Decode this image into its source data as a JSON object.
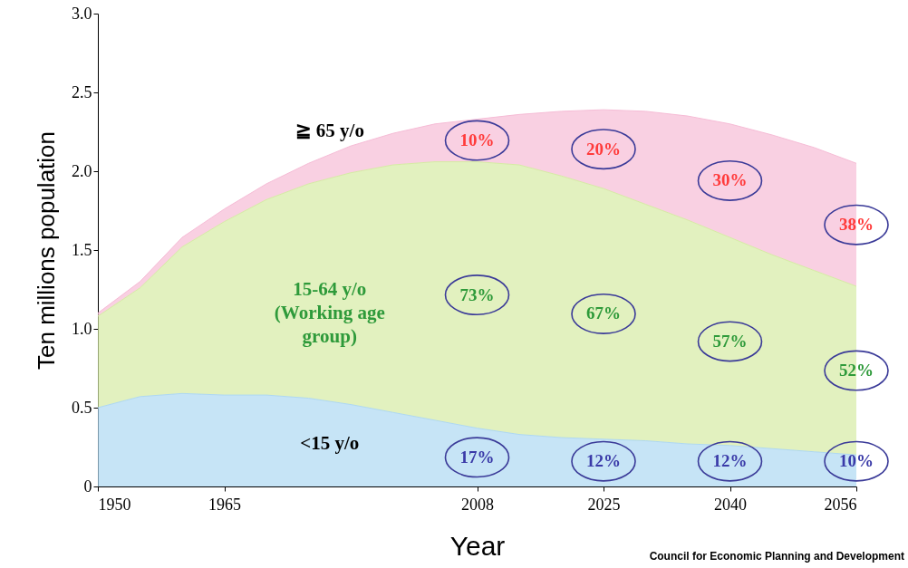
{
  "chart_data": {
    "type": "area",
    "stacked": true,
    "xlabel": "Year",
    "ylabel": "Ten millions population",
    "categories": [
      "1950",
      null,
      null,
      "1965",
      null,
      null,
      null,
      null,
      null,
      "2008",
      null,
      null,
      "2025",
      null,
      null,
      "2040",
      null,
      null,
      "2056"
    ],
    "series": [
      {
        "name": "<15 y/o",
        "color": "#aed8f2",
        "values": [
          0.5,
          0.57,
          0.59,
          0.58,
          0.58,
          0.56,
          0.52,
          0.47,
          0.42,
          0.37,
          0.33,
          0.31,
          0.3,
          0.29,
          0.27,
          0.26,
          0.24,
          0.22,
          0.2
        ]
      },
      {
        "name": "15-64 y/o (Working age group)",
        "color": "#d6eba4",
        "values": [
          0.58,
          0.69,
          0.93,
          1.1,
          1.24,
          1.36,
          1.47,
          1.57,
          1.64,
          1.69,
          1.71,
          1.66,
          1.59,
          1.5,
          1.42,
          1.32,
          1.23,
          1.15,
          1.07
        ]
      },
      {
        "name": "≧ 65 y/o",
        "color": "#f6bcd6",
        "values": [
          0.02,
          0.04,
          0.06,
          0.08,
          0.1,
          0.13,
          0.17,
          0.2,
          0.24,
          0.27,
          0.32,
          0.41,
          0.5,
          0.59,
          0.66,
          0.72,
          0.76,
          0.78,
          0.78
        ]
      }
    ],
    "ylim": [
      0,
      3
    ],
    "yticks": [
      0,
      {
        "value": 0.5,
        "label": "0.5"
      },
      {
        "value": 1,
        "label": "1.0"
      },
      {
        "value": 1.5,
        "label": "1.5"
      },
      {
        "value": 2,
        "label": "2.0"
      },
      {
        "value": 2.5,
        "label": "2.5"
      },
      {
        "value": 3,
        "label": "3.0"
      }
    ],
    "annotations": [
      "10%",
      "73%",
      "17%",
      "20%",
      "67%",
      "12%",
      "30%",
      "57%",
      "12%",
      "38%",
      "52%",
      "10%",
      "Council for Economic Planning and Development"
    ]
  }
}
